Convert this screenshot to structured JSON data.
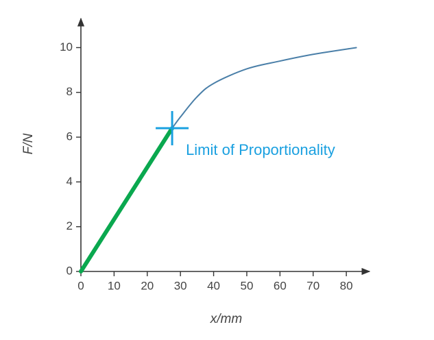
{
  "chart_data": {
    "type": "line",
    "x_label": "x/mm",
    "y_label": "F/N",
    "xlim": [
      0,
      87
    ],
    "ylim": [
      0,
      11.3
    ],
    "xticks": [
      0,
      10,
      20,
      30,
      40,
      50,
      60,
      70,
      80
    ],
    "yticks": [
      0,
      2,
      4,
      6,
      8,
      10
    ],
    "series": [
      {
        "color": "#0aa84f",
        "line_width": 6,
        "x": [
          0,
          27.5
        ],
        "values": [
          0,
          6.4
        ]
      },
      {
        "color": "#4a7fa8",
        "line_width": 2,
        "x": [
          27.5,
          30,
          35,
          40,
          50,
          60,
          70,
          83
        ],
        "values": [
          6.4,
          6.9,
          7.8,
          8.4,
          9.05,
          9.4,
          9.7,
          10.0
        ]
      }
    ],
    "annotation": {
      "text": "Limit of Proportionality",
      "x": 27.5,
      "y": 6.4,
      "color": "#1aa0e0"
    }
  }
}
